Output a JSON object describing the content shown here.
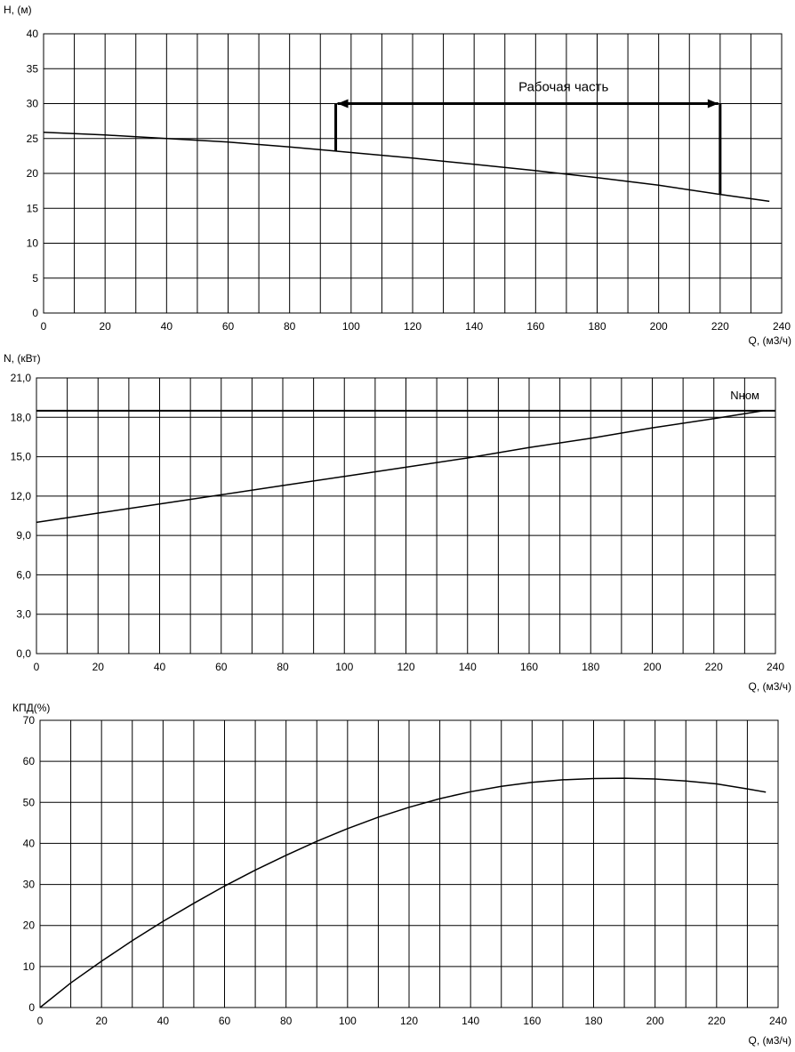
{
  "chart_data": [
    {
      "type": "line",
      "ylabel": "H, (м)",
      "xlabel": "Q, (м3/ч)",
      "xlim": [
        0,
        240
      ],
      "ylim": [
        0,
        40
      ],
      "x_ticks": [
        0,
        20,
        40,
        60,
        80,
        100,
        120,
        140,
        160,
        180,
        200,
        220,
        240
      ],
      "y_ticks": [
        0,
        5,
        10,
        15,
        20,
        25,
        30,
        35,
        40
      ],
      "x_tick_labels": [
        "0",
        "20",
        "40",
        "60",
        "80",
        "100",
        "120",
        "140",
        "160",
        "180",
        "200",
        "220",
        "240"
      ],
      "y_tick_labels": [
        "0",
        "5",
        "10",
        "15",
        "20",
        "25",
        "30",
        "35",
        "40"
      ],
      "grid": true,
      "series": [
        {
          "x": [
            0,
            20,
            40,
            60,
            80,
            95,
            100,
            120,
            140,
            160,
            180,
            200,
            220,
            236
          ],
          "y": [
            25.9,
            25.5,
            25.0,
            24.5,
            23.8,
            23.2,
            23.0,
            22.2,
            21.3,
            20.4,
            19.4,
            18.3,
            17.0,
            16.0
          ]
        }
      ],
      "annotation": {
        "text": "Рабочая часть",
        "x_start": 95,
        "x_end": 220,
        "y_level": 30,
        "y_start_low": 23.2,
        "y_end_low": 17.0
      }
    },
    {
      "type": "line",
      "ylabel": "N, (кВт)",
      "xlabel": "Q, (м3/ч)",
      "xlim": [
        0,
        240
      ],
      "ylim": [
        0,
        21
      ],
      "x_ticks": [
        0,
        20,
        40,
        60,
        80,
        100,
        120,
        140,
        160,
        180,
        200,
        220,
        240
      ],
      "y_ticks": [
        0,
        3,
        6,
        9,
        12,
        15,
        18,
        21
      ],
      "x_tick_labels": [
        "0",
        "20",
        "40",
        "60",
        "80",
        "100",
        "120",
        "140",
        "160",
        "180",
        "200",
        "220",
        "240"
      ],
      "y_tick_labels": [
        "0,0",
        "3,0",
        "6,0",
        "9,0",
        "12,0",
        "15,0",
        "18,0",
        "21,0"
      ],
      "grid": true,
      "series": [
        {
          "x": [
            0,
            20,
            40,
            60,
            80,
            100,
            120,
            140,
            160,
            180,
            200,
            220,
            236
          ],
          "y": [
            10.0,
            10.7,
            11.4,
            12.1,
            12.8,
            13.5,
            14.2,
            14.9,
            15.7,
            16.4,
            17.2,
            17.9,
            18.5
          ]
        }
      ],
      "reference_line": {
        "label": "Nном",
        "y": 18.5
      }
    },
    {
      "type": "line",
      "ylabel": "КПД(%)",
      "xlabel": "Q, (м3/ч)",
      "xlim": [
        0,
        240
      ],
      "ylim": [
        0,
        70
      ],
      "x_ticks": [
        0,
        20,
        40,
        60,
        80,
        100,
        120,
        140,
        160,
        180,
        200,
        220,
        240
      ],
      "y_ticks": [
        0,
        10,
        20,
        30,
        40,
        50,
        60,
        70
      ],
      "x_tick_labels": [
        "0",
        "20",
        "40",
        "60",
        "80",
        "100",
        "120",
        "140",
        "160",
        "180",
        "200",
        "220",
        "240"
      ],
      "y_tick_labels": [
        "0",
        "10",
        "20",
        "30",
        "40",
        "50",
        "60",
        "70"
      ],
      "grid": true,
      "series": [
        {
          "x": [
            0,
            10,
            20,
            30,
            40,
            50,
            60,
            70,
            80,
            90,
            100,
            110,
            120,
            130,
            140,
            150,
            160,
            170,
            180,
            190,
            200,
            210,
            220,
            230,
            236
          ],
          "y": [
            0,
            6.0,
            11.3,
            16.3,
            21.0,
            25.4,
            29.6,
            33.5,
            37.1,
            40.5,
            43.6,
            46.4,
            48.8,
            50.9,
            52.6,
            53.9,
            54.9,
            55.5,
            55.8,
            55.9,
            55.7,
            55.2,
            54.5,
            53.3,
            52.5
          ]
        }
      ]
    }
  ]
}
